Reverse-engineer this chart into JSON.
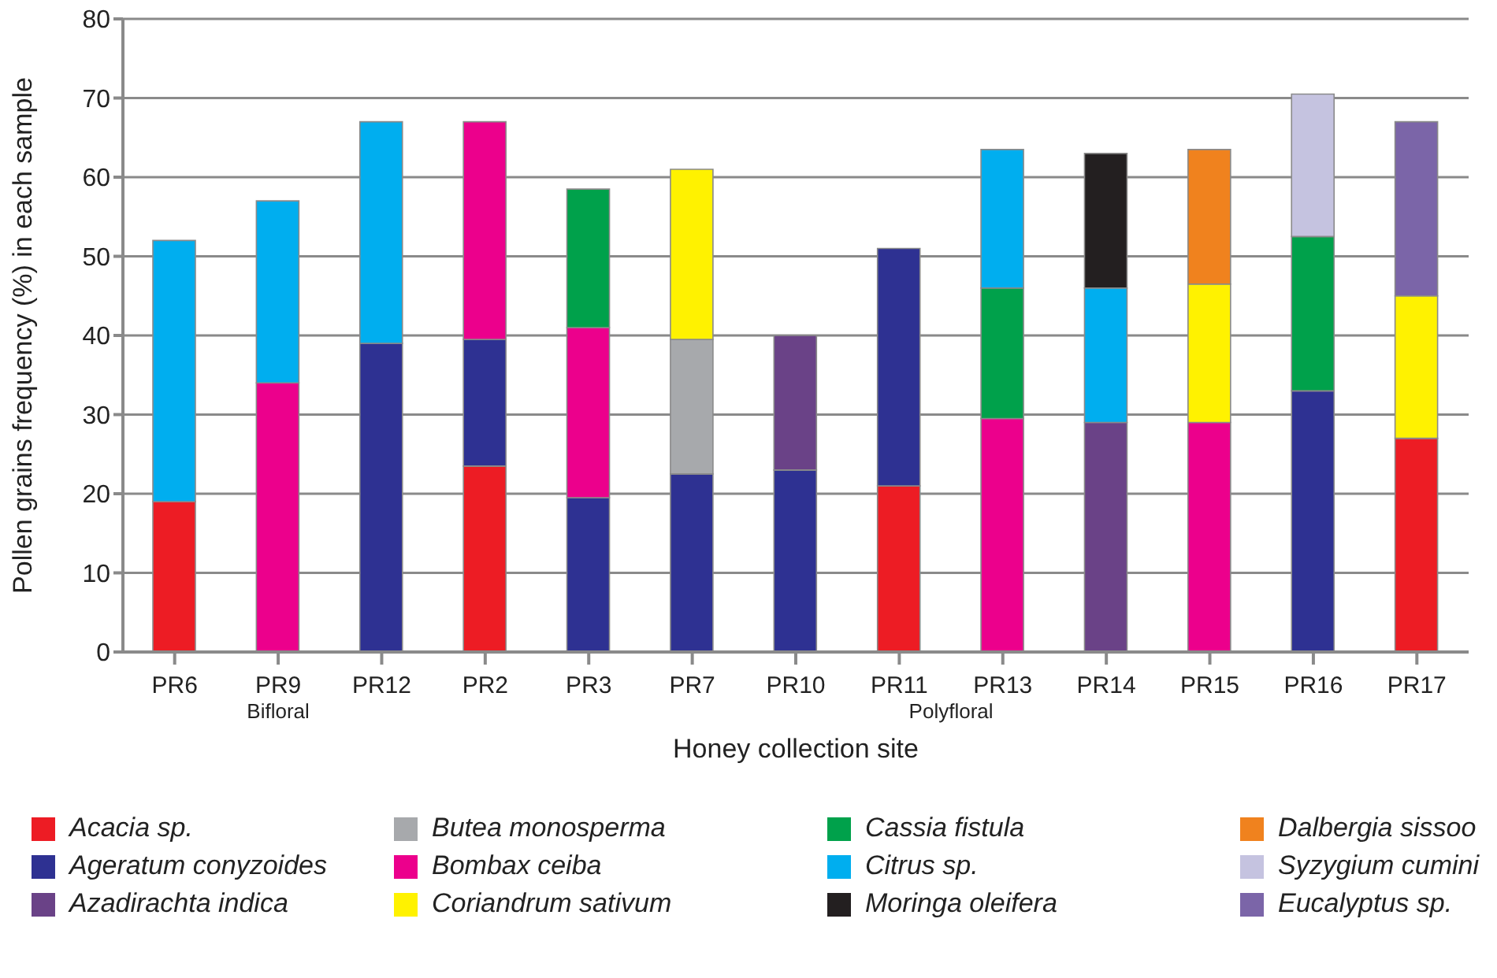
{
  "chart_data": {
    "type": "bar",
    "stacked": true,
    "xlabel": "Honey collection site",
    "ylabel": "Pollen grains  frequency (%) in each sample",
    "categories": [
      "PR6",
      "PR9",
      "PR12",
      "PR2",
      "PR3",
      "PR7",
      "PR10",
      "PR11",
      "PR13",
      "PR14",
      "PR15",
      "PR16",
      "PR17"
    ],
    "series": [
      {
        "name": "Acacia sp.",
        "color": "#ed1c24",
        "values": [
          19,
          null,
          null,
          23.5,
          null,
          null,
          null,
          21,
          null,
          null,
          null,
          null,
          27
        ]
      },
      {
        "name": "Ageratum conyzoides",
        "color": "#2e3192",
        "values": [
          null,
          null,
          39,
          16,
          19.5,
          22.5,
          23,
          30,
          null,
          null,
          null,
          33,
          null
        ]
      },
      {
        "name": "Azadirachta indica",
        "color": "#6a4287",
        "values": [
          null,
          null,
          null,
          null,
          null,
          null,
          17,
          null,
          null,
          29,
          null,
          null,
          null
        ]
      },
      {
        "name": "Butea monosperma",
        "color": "#a7a9ac",
        "values": [
          null,
          null,
          null,
          null,
          null,
          17,
          null,
          null,
          null,
          null,
          null,
          null,
          null
        ]
      },
      {
        "name": "Bombax ceiba",
        "color": "#ec008c",
        "values": [
          null,
          34,
          null,
          27.5,
          21.5,
          null,
          null,
          null,
          29.5,
          null,
          29,
          null,
          null
        ]
      },
      {
        "name": "Coriandrum sativum",
        "color": "#fff200",
        "values": [
          null,
          null,
          null,
          null,
          null,
          21.5,
          null,
          null,
          null,
          null,
          17.5,
          null,
          18
        ]
      },
      {
        "name": "Cassia fistula",
        "color": "#00a14b",
        "values": [
          null,
          null,
          null,
          null,
          17.5,
          null,
          null,
          null,
          16.5,
          null,
          null,
          19.5,
          null
        ]
      },
      {
        "name": "Citrus sp.",
        "color": "#00aeef",
        "values": [
          33,
          23,
          28,
          null,
          null,
          null,
          null,
          null,
          17.5,
          17,
          null,
          null,
          null
        ]
      },
      {
        "name": "Moringa oleifera",
        "color": "#231f20",
        "values": [
          null,
          null,
          null,
          null,
          null,
          null,
          null,
          null,
          null,
          17,
          null,
          null,
          null
        ]
      },
      {
        "name": "Dalbergia sissoo",
        "color": "#f0821e",
        "values": [
          null,
          null,
          null,
          null,
          null,
          null,
          null,
          null,
          null,
          null,
          17,
          null,
          null
        ]
      },
      {
        "name": "Syzygium cumini",
        "color": "#c5c3e0",
        "values": [
          null,
          null,
          null,
          null,
          null,
          null,
          null,
          null,
          null,
          null,
          null,
          18,
          null
        ]
      },
      {
        "name": "Eucalyptus sp.",
        "color": "#7b65a8",
        "values": [
          null,
          null,
          null,
          null,
          null,
          null,
          null,
          null,
          null,
          null,
          null,
          null,
          22
        ]
      }
    ],
    "ylim": [
      0,
      80
    ],
    "yticks": [
      0,
      10,
      20,
      30,
      40,
      50,
      60,
      70,
      80
    ],
    "grid": "y",
    "legend": "bottom",
    "annotations": [
      "Bifloral",
      "Polyfloral"
    ]
  }
}
